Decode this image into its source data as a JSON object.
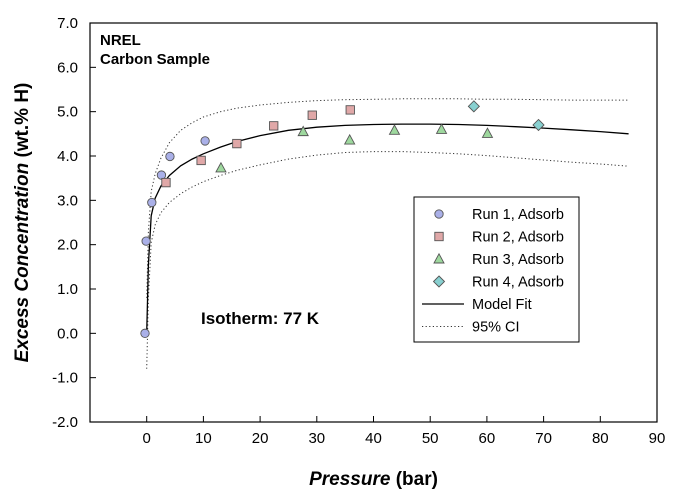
{
  "chart_data": {
    "type": "scatter",
    "title": "",
    "xlabel_italic": "Pressure",
    "xlabel_rest": " (bar)",
    "ylabel_italic": "Excess Concentration",
    "ylabel_rest": " (wt.% H)",
    "xlim": [
      -10,
      90
    ],
    "ylim": [
      -2.0,
      7.0
    ],
    "x_ticks": [
      0,
      10,
      20,
      30,
      40,
      50,
      60,
      70,
      80,
      90
    ],
    "y_ticks": [
      -2.0,
      -1.0,
      0.0,
      1.0,
      2.0,
      3.0,
      4.0,
      5.0,
      6.0,
      7.0
    ],
    "grid": false,
    "legend_position": "right",
    "annotations": {
      "line1": "NREL",
      "line2": "Carbon Sample",
      "isotherm": "Isotherm:  77 K"
    },
    "series": [
      {
        "name": "Run 1, Adsorb",
        "marker": "circle",
        "color": "#aab0e8",
        "x": [
          -0.3,
          -0.1,
          0.9,
          2.6,
          4.1,
          10.3
        ],
        "y": [
          0.0,
          2.08,
          2.95,
          3.57,
          3.99,
          4.34
        ]
      },
      {
        "name": "Run 2, Adsorb",
        "marker": "square",
        "color": "#e0a8a8",
        "x": [
          3.4,
          9.6,
          15.9,
          22.4,
          29.2,
          35.9
        ],
        "y": [
          3.4,
          3.9,
          4.28,
          4.68,
          4.92,
          5.04
        ]
      },
      {
        "name": "Run 3, Adsorb",
        "marker": "triangle",
        "color": "#9ed89e",
        "x": [
          13.1,
          27.6,
          35.8,
          43.7,
          52.0,
          60.1
        ],
        "y": [
          3.73,
          4.55,
          4.36,
          4.58,
          4.6,
          4.51
        ]
      },
      {
        "name": "Run 4, Adsorb",
        "marker": "diamond",
        "color": "#88d0d0",
        "x": [
          57.7,
          69.1
        ],
        "y": [
          5.12,
          4.7
        ]
      },
      {
        "name": "Model Fit",
        "line": "solid",
        "x": [
          0,
          0.3,
          0.8,
          1.5,
          2.5,
          4,
          6,
          8,
          10,
          13,
          16,
          20,
          25,
          30,
          35,
          40,
          45,
          50,
          55,
          60,
          65,
          70,
          75,
          80,
          85
        ],
        "y": [
          0.0,
          1.55,
          2.65,
          3.05,
          3.32,
          3.56,
          3.78,
          3.93,
          4.05,
          4.2,
          4.33,
          4.46,
          4.58,
          4.65,
          4.69,
          4.71,
          4.72,
          4.72,
          4.71,
          4.69,
          4.66,
          4.63,
          4.59,
          4.55,
          4.5
        ]
      },
      {
        "name": "95% CI",
        "line": "dotted",
        "upper": {
          "x": [
            0,
            0.3,
            0.8,
            1.5,
            2.5,
            4,
            6,
            8,
            10,
            13,
            16,
            20,
            25,
            30,
            35,
            40,
            45,
            50,
            55,
            60,
            65,
            70,
            75,
            80,
            85
          ],
          "y": [
            0.8,
            2.3,
            3.2,
            3.6,
            3.95,
            4.3,
            4.58,
            4.75,
            4.88,
            5.0,
            5.08,
            5.15,
            5.21,
            5.25,
            5.27,
            5.28,
            5.29,
            5.29,
            5.29,
            5.28,
            5.28,
            5.27,
            5.26,
            5.26,
            5.26
          ]
        },
        "lower": {
          "x": [
            0,
            0.3,
            0.8,
            1.5,
            2.5,
            4,
            6,
            8,
            10,
            13,
            16,
            20,
            25,
            30,
            35,
            40,
            45,
            50,
            55,
            60,
            65,
            70,
            75,
            80,
            85
          ],
          "y": [
            -0.8,
            0.8,
            2.05,
            2.45,
            2.72,
            2.95,
            3.15,
            3.3,
            3.42,
            3.56,
            3.68,
            3.8,
            3.93,
            4.02,
            4.08,
            4.1,
            4.1,
            4.08,
            4.05,
            4.01,
            3.96,
            3.91,
            3.86,
            3.82,
            3.77
          ]
        }
      }
    ]
  }
}
